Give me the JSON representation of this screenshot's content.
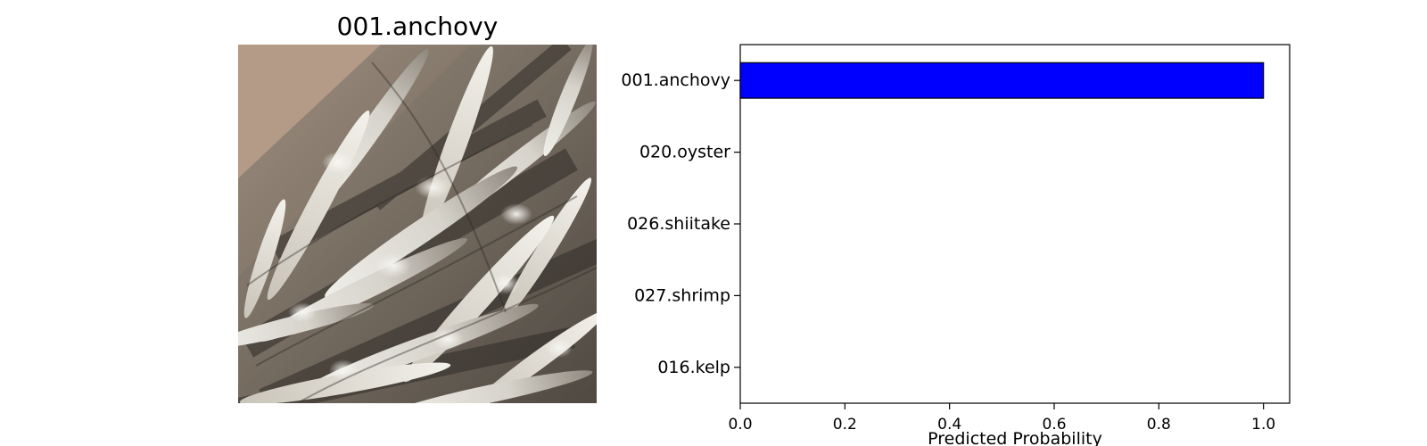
{
  "image_panel": {
    "title": "001.anchovy"
  },
  "chart_data": {
    "type": "bar",
    "orientation": "horizontal",
    "categories": [
      "001.anchovy",
      "020.oyster",
      "026.shiitake",
      "027.shrimp",
      "016.kelp"
    ],
    "values": [
      1.0,
      0.0,
      0.0,
      0.0,
      0.0
    ],
    "title": "",
    "xlabel": "Predicted Probability",
    "ylabel": "",
    "xlim": [
      0,
      1.05
    ],
    "xticks": [
      "0.0",
      "0.2",
      "0.4",
      "0.6",
      "0.8",
      "1.0"
    ],
    "bar_color": "#0000ff",
    "grid": false
  }
}
